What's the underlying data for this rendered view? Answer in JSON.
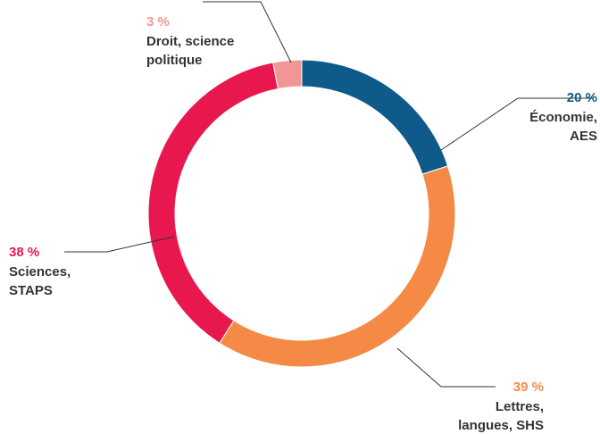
{
  "chart_data": {
    "type": "pie",
    "donut": true,
    "title": "",
    "slices": [
      {
        "value": 20,
        "pct_label": "20 %",
        "label_lines": [
          "Économie,",
          "AES"
        ],
        "color": "#0e5a8a"
      },
      {
        "value": 39,
        "pct_label": "39 %",
        "label_lines": [
          "Lettres,",
          "langues, SHS"
        ],
        "color": "#f48a45"
      },
      {
        "value": 38,
        "pct_label": "38 %",
        "label_lines": [
          "Sciences,",
          "STAPS"
        ],
        "color": "#e8184f"
      },
      {
        "value": 3,
        "pct_label": "3 %",
        "label_lines": [
          "Droit, science",
          "politique"
        ],
        "color": "#f29595"
      }
    ],
    "start": "top",
    "direction": "clockwise",
    "legend": "none"
  }
}
